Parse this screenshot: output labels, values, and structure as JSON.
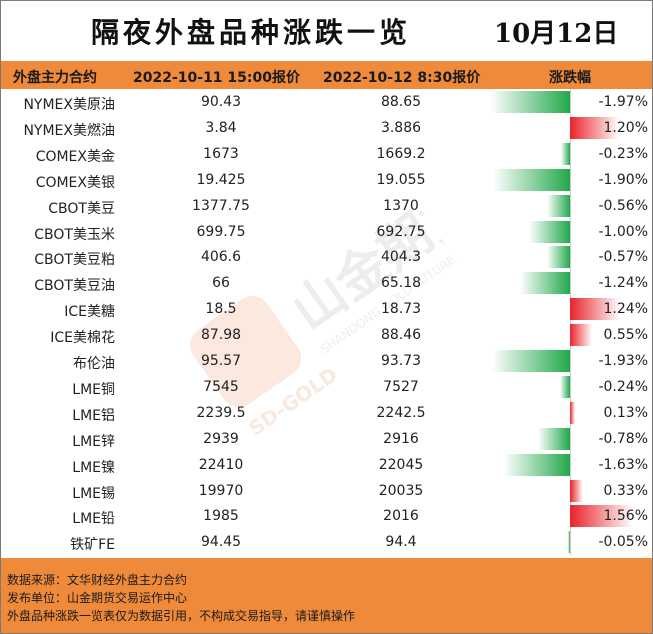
{
  "title": "隔夜外盘品种涨跌一览",
  "date": "10月12日",
  "header": {
    "col_name": "外盘主力合约",
    "col_prev": "2022-10-11 15:00报价",
    "col_curr": "2022-10-12 8:30报价",
    "col_change": "涨跌幅"
  },
  "colors": {
    "up": "#e8232a",
    "down": "#21a84b",
    "header": "#f08a3b"
  },
  "watermark": {
    "brand": "山金期货",
    "latin": "SHANDONG GOLD FUTURES",
    "mark": "SD-GOLD"
  },
  "rows": [
    {
      "name": "NYMEX美原油",
      "prev": "90.43",
      "curr": "88.65",
      "change": "-1.97%",
      "change_value": -1.97
    },
    {
      "name": "NYMEX美燃油",
      "prev": "3.84",
      "curr": "3.886",
      "change": "1.20%",
      "change_value": 1.2
    },
    {
      "name": "COMEX美金",
      "prev": "1673",
      "curr": "1669.2",
      "change": "-0.23%",
      "change_value": -0.23
    },
    {
      "name": "COMEX美银",
      "prev": "19.425",
      "curr": "19.055",
      "change": "-1.90%",
      "change_value": -1.9
    },
    {
      "name": "CBOT美豆",
      "prev": "1377.75",
      "curr": "1370",
      "change": "-0.56%",
      "change_value": -0.56
    },
    {
      "name": "CBOT美玉米",
      "prev": "699.75",
      "curr": "692.75",
      "change": "-1.00%",
      "change_value": -1.0
    },
    {
      "name": "CBOT美豆粕",
      "prev": "406.6",
      "curr": "404.3",
      "change": "-0.57%",
      "change_value": -0.57
    },
    {
      "name": "CBOT美豆油",
      "prev": "66",
      "curr": "65.18",
      "change": "-1.24%",
      "change_value": -1.24
    },
    {
      "name": "ICE美糖",
      "prev": "18.5",
      "curr": "18.73",
      "change": "1.24%",
      "change_value": 1.24
    },
    {
      "name": "ICE美棉花",
      "prev": "87.98",
      "curr": "88.46",
      "change": "0.55%",
      "change_value": 0.55
    },
    {
      "name": "布伦油",
      "prev": "95.57",
      "curr": "93.73",
      "change": "-1.93%",
      "change_value": -1.93
    },
    {
      "name": "LME铜",
      "prev": "7545",
      "curr": "7527",
      "change": "-0.24%",
      "change_value": -0.24
    },
    {
      "name": "LME铝",
      "prev": "2239.5",
      "curr": "2242.5",
      "change": "0.13%",
      "change_value": 0.13
    },
    {
      "name": "LME锌",
      "prev": "2939",
      "curr": "2916",
      "change": "-0.78%",
      "change_value": -0.78
    },
    {
      "name": "LME镍",
      "prev": "22410",
      "curr": "22045",
      "change": "-1.63%",
      "change_value": -1.63
    },
    {
      "name": "LME锡",
      "prev": "19970",
      "curr": "20035",
      "change": "0.33%",
      "change_value": 0.33
    },
    {
      "name": "LME铅",
      "prev": "1985",
      "curr": "2016",
      "change": "1.56%",
      "change_value": 1.56
    },
    {
      "name": "铁矿FE",
      "prev": "94.45",
      "curr": "94.4",
      "change": "-0.05%",
      "change_value": -0.05
    }
  ],
  "footer": {
    "source": "数据来源：文华财经外盘主力合约",
    "publisher": "发布单位：山金期货交易运作中心",
    "disclaimer": "外盘品种涨跌一览表仅为数据引用，不构成交易指导，请谨慎操作"
  }
}
